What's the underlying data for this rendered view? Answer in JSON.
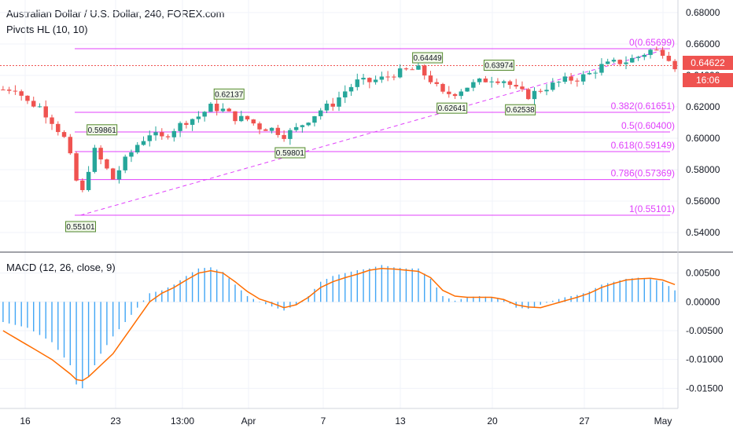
{
  "header": {
    "title": "Australian Dollar / U.S. Dollar, 240, FOREX.com",
    "indicator": "Pivots HL (10, 10)",
    "macd": "MACD (12, 26, close, 9)"
  },
  "badges": {
    "last_price": "0.64622",
    "countdown": "16:06"
  },
  "colors": {
    "up": "#26a69a",
    "down": "#ef5350",
    "fib": "#e040fb",
    "fib_label": "#e040fb",
    "hist": "#2196f3",
    "signal": "#ff6d00",
    "grid": "#f0f3fa",
    "axis": "#131722"
  },
  "chart_data": [
    {
      "type": "candlestick",
      "title": "Australian Dollar / U.S. Dollar, 240, FOREX.com",
      "ylim": [
        0.528,
        0.688
      ],
      "y_ticks": [
        "0.68000",
        "0.66000",
        "0.64000",
        "0.62000",
        "0.60000",
        "0.58000",
        "0.56000",
        "0.54000"
      ],
      "y_tick_values": [
        0.68,
        0.66,
        0.64,
        0.62,
        0.6,
        0.58,
        0.56,
        0.54
      ],
      "x_ticks": [
        "16",
        "23",
        "13:00",
        "Apr",
        "7",
        "13",
        "20",
        "27",
        "May"
      ],
      "last_price": 0.64622,
      "close_path": [
        [
          0,
          0.631
        ],
        [
          2,
          0.632
        ],
        [
          4,
          0.623
        ],
        [
          6,
          0.62
        ],
        [
          8,
          0.611
        ],
        [
          10,
          0.6
        ],
        [
          11.5,
          0.582
        ],
        [
          12.7,
          0.56
        ],
        [
          13.5,
          0.575
        ],
        [
          15,
          0.592
        ],
        [
          16.5,
          0.583
        ],
        [
          18,
          0.574
        ],
        [
          20,
          0.586
        ],
        [
          22,
          0.596
        ],
        [
          24,
          0.603
        ],
        [
          26,
          0.6
        ],
        [
          28,
          0.606
        ],
        [
          30,
          0.611
        ],
        [
          32,
          0.614
        ],
        [
          34,
          0.62
        ],
        [
          36,
          0.618
        ],
        [
          38,
          0.613
        ],
        [
          40,
          0.612
        ],
        [
          42,
          0.607
        ],
        [
          44,
          0.606
        ],
        [
          46,
          0.602
        ],
        [
          48,
          0.606
        ],
        [
          50,
          0.612
        ],
        [
          52,
          0.618
        ],
        [
          54,
          0.622
        ],
        [
          56,
          0.63
        ],
        [
          58,
          0.636
        ],
        [
          60,
          0.636
        ],
        [
          62,
          0.638
        ],
        [
          64,
          0.641
        ],
        [
          66,
          0.643
        ],
        [
          68,
          0.644
        ],
        [
          70,
          0.637
        ],
        [
          72,
          0.628
        ],
        [
          74,
          0.629
        ],
        [
          76,
          0.633
        ],
        [
          78,
          0.636
        ],
        [
          80,
          0.638
        ],
        [
          82,
          0.637
        ],
        [
          84,
          0.631
        ],
        [
          86,
          0.627
        ],
        [
          88,
          0.631
        ],
        [
          90,
          0.634
        ],
        [
          92,
          0.637
        ],
        [
          94,
          0.638
        ],
        [
          96,
          0.641
        ],
        [
          98,
          0.646
        ],
        [
          100,
          0.648
        ],
        [
          102,
          0.649
        ],
        [
          104,
          0.652
        ],
        [
          106,
          0.656
        ],
        [
          108,
          0.655
        ],
        [
          109.5,
          0.65
        ],
        [
          110,
          0.646
        ]
      ],
      "pivots": [
        {
          "label": "0.55101",
          "value": 0.55101,
          "bar": 12.7,
          "kind": "low"
        },
        {
          "label": "0.59861",
          "value": 0.59861,
          "bar": 16.2,
          "kind": "high"
        },
        {
          "label": "0.62137",
          "value": 0.62137,
          "bar": 37,
          "kind": "high"
        },
        {
          "label": "0.59801",
          "value": 0.59801,
          "bar": 47,
          "kind": "low"
        },
        {
          "label": "0.64449",
          "value": 0.64449,
          "bar": 69.5,
          "kind": "high"
        },
        {
          "label": "0.62641",
          "value": 0.62641,
          "bar": 73.5,
          "kind": "low"
        },
        {
          "label": "0.63974",
          "value": 0.63974,
          "bar": 81.2,
          "kind": "high"
        },
        {
          "label": "0.62538",
          "value": 0.62538,
          "bar": 84.7,
          "kind": "low"
        }
      ],
      "fib_levels": [
        {
          "label": "0(0.65699)",
          "value": 0.65699
        },
        {
          "label": "0.382(0.61651)",
          "value": 0.61651
        },
        {
          "label": "0.5(0.60400)",
          "value": 0.604
        },
        {
          "label": "0.618(0.59149)",
          "value": 0.59149
        },
        {
          "label": "0.786(0.57369)",
          "value": 0.57369
        },
        {
          "label": "1(0.55101)",
          "value": 0.55101
        }
      ],
      "trend_line": [
        [
          12.7,
          0.55101
        ],
        [
          108,
          0.656
        ]
      ]
    },
    {
      "type": "histogram+line",
      "title": "MACD (12, 26, close, 9)",
      "ylim": [
        -0.0185,
        0.0085
      ],
      "y_ticks": [
        "0.00500",
        "0.00000",
        "-0.00500",
        "-0.01000",
        "-0.01500"
      ],
      "y_tick_values": [
        0.005,
        0,
        -0.005,
        -0.01,
        -0.015
      ],
      "histogram_path": [
        [
          0,
          -0.0035
        ],
        [
          4,
          -0.0045
        ],
        [
          8,
          -0.007
        ],
        [
          11,
          -0.011
        ],
        [
          12.5,
          -0.016
        ],
        [
          14,
          -0.013
        ],
        [
          16,
          -0.009
        ],
        [
          18,
          -0.006
        ],
        [
          20,
          -0.0035
        ],
        [
          22,
          -0.001
        ],
        [
          24,
          0.0015
        ],
        [
          26,
          0.002
        ],
        [
          28,
          0.003
        ],
        [
          30,
          0.0045
        ],
        [
          32,
          0.0058
        ],
        [
          34,
          0.006
        ],
        [
          36,
          0.0052
        ],
        [
          38,
          0.003
        ],
        [
          40,
          0.001
        ],
        [
          42,
          0.0
        ],
        [
          44,
          -0.0008
        ],
        [
          46,
          -0.0015
        ],
        [
          48,
          -0.0005
        ],
        [
          50,
          0.001
        ],
        [
          52,
          0.0035
        ],
        [
          54,
          0.0045
        ],
        [
          56,
          0.005
        ],
        [
          58,
          0.0055
        ],
        [
          60,
          0.0058
        ],
        [
          62,
          0.0064
        ],
        [
          64,
          0.006
        ],
        [
          66,
          0.0058
        ],
        [
          68,
          0.0058
        ],
        [
          70,
          0.004
        ],
        [
          72,
          0.001
        ],
        [
          74,
          0.0002
        ],
        [
          76,
          0.0008
        ],
        [
          78,
          0.001
        ],
        [
          80,
          0.0008
        ],
        [
          82,
          0.0004
        ],
        [
          84,
          -0.001
        ],
        [
          86,
          -0.0012
        ],
        [
          88,
          -0.0005
        ],
        [
          90,
          0.0002
        ],
        [
          92,
          0.0008
        ],
        [
          94,
          0.0012
        ],
        [
          96,
          0.0018
        ],
        [
          98,
          0.003
        ],
        [
          100,
          0.0035
        ],
        [
          102,
          0.004
        ],
        [
          104,
          0.0042
        ],
        [
          106,
          0.004
        ],
        [
          108,
          0.0035
        ],
        [
          110,
          0.002
        ]
      ],
      "signal_path": [
        [
          0,
          -0.005
        ],
        [
          4,
          -0.0075
        ],
        [
          8,
          -0.01
        ],
        [
          11,
          -0.0125
        ],
        [
          12.5,
          -0.014
        ],
        [
          14,
          -0.013
        ],
        [
          16,
          -0.011
        ],
        [
          18,
          -0.009
        ],
        [
          20,
          -0.006
        ],
        [
          22,
          -0.003
        ],
        [
          24,
          0.0
        ],
        [
          26,
          0.0015
        ],
        [
          28,
          0.0025
        ],
        [
          30,
          0.0038
        ],
        [
          32,
          0.005
        ],
        [
          34,
          0.0054
        ],
        [
          36,
          0.005
        ],
        [
          38,
          0.0035
        ],
        [
          40,
          0.0018
        ],
        [
          42,
          0.0005
        ],
        [
          44,
          -0.0002
        ],
        [
          46,
          -0.001
        ],
        [
          48,
          -0.0005
        ],
        [
          50,
          0.0008
        ],
        [
          52,
          0.0025
        ],
        [
          54,
          0.0035
        ],
        [
          56,
          0.0042
        ],
        [
          58,
          0.0048
        ],
        [
          60,
          0.0055
        ],
        [
          62,
          0.0058
        ],
        [
          64,
          0.0057
        ],
        [
          66,
          0.0055
        ],
        [
          68,
          0.0053
        ],
        [
          70,
          0.0042
        ],
        [
          72,
          0.002
        ],
        [
          74,
          0.001
        ],
        [
          76,
          0.0008
        ],
        [
          78,
          0.0008
        ],
        [
          80,
          0.0008
        ],
        [
          82,
          0.0004
        ],
        [
          84,
          -0.0005
        ],
        [
          86,
          -0.0009
        ],
        [
          88,
          -0.001
        ],
        [
          90,
          -0.0004
        ],
        [
          92,
          0.0002
        ],
        [
          94,
          0.0008
        ],
        [
          96,
          0.0015
        ],
        [
          98,
          0.0025
        ],
        [
          100,
          0.0032
        ],
        [
          102,
          0.0038
        ],
        [
          104,
          0.004
        ],
        [
          106,
          0.0041
        ],
        [
          108,
          0.0038
        ],
        [
          110,
          0.003
        ]
      ]
    }
  ]
}
